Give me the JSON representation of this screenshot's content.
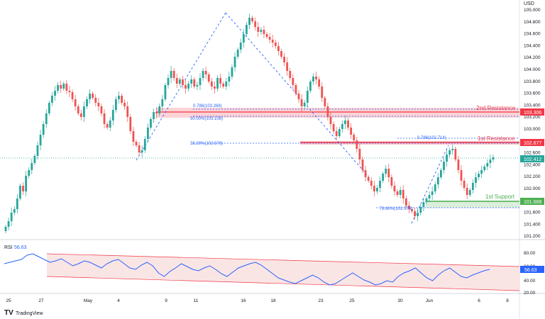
{
  "currency_label": "USD",
  "rsi_panel": {
    "label": "RSI",
    "value": "56.63",
    "current_badge": "56.63"
  },
  "price_axis_ticks": [
    "105.000",
    "104.800",
    "104.600",
    "104.400",
    "104.200",
    "104.000",
    "103.800",
    "103.600",
    "103.400",
    "103.200",
    "103.000",
    "102.800",
    "102.600",
    "102.400",
    "102.200",
    "102.000",
    "101.800",
    "101.600",
    "101.400",
    "101.200"
  ],
  "rsi_axis_ticks": [
    "80.00",
    "60.00",
    "40.00",
    "20.00"
  ],
  "date_axis_ticks": [
    "25",
    "27",
    "May",
    "4",
    "9",
    "11",
    "16",
    "18",
    "23",
    "25",
    "30",
    "Jun",
    "6",
    "8"
  ],
  "levels": {
    "second_resistance": {
      "label": "2nd Resistance",
      "price_badge": "103.306"
    },
    "first_resistance": {
      "label": "1st Resistance",
      "price_badge": "102.677"
    },
    "current": {
      "price_badge": "102.412"
    },
    "first_support": {
      "label": "1st Support",
      "price_badge": "101.668"
    }
  },
  "fib_labels": {
    "fib_786_upper": "0.786(103.268)",
    "fib_500": "50.00%(103.108)",
    "fib_382": "38.20%(102.678)",
    "fib_786_right": "0.786(102.714)",
    "fib_786_lower": "78.60%(101.575)"
  },
  "branding": "TradingView",
  "colors": {
    "up": "#26a69a",
    "down": "#ef5350",
    "resistance": "#f23645",
    "support": "#4caf50",
    "fib_line": "#2962ff",
    "rsi_line": "#2962ff",
    "rsi_channel": "#f6d3d3"
  },
  "chart_data": {
    "type": "candlestick",
    "x_ticks": [
      "25",
      "27",
      "May",
      "4",
      "9",
      "11",
      "16",
      "18",
      "23",
      "25",
      "30",
      "Jun",
      "6",
      "8"
    ],
    "y_range": [
      101.1,
      105.2
    ],
    "resistance_zones": [
      {
        "name": "2nd Resistance",
        "low": 103.18,
        "high": 103.306
      },
      {
        "name": "1st Resistance",
        "low": 102.64,
        "high": 102.677
      }
    ],
    "support_zones": [
      {
        "name": "1st Support",
        "low": 101.55,
        "high": 101.668
      }
    ],
    "last_price": 102.412,
    "rsi_last": 56.63,
    "rsi_range": [
      15,
      88
    ]
  }
}
